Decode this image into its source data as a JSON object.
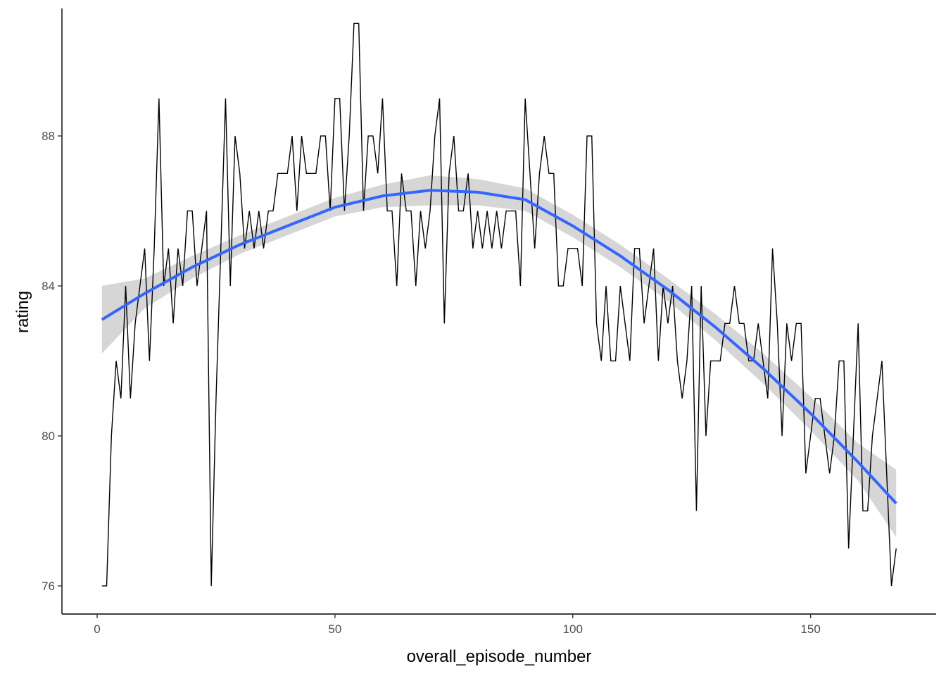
{
  "chart_data": {
    "type": "line",
    "xlabel": "overall_episode_number",
    "ylabel": "rating",
    "xlim": [
      -7.4,
      176.4
    ],
    "ylim": [
      75.25,
      91.4
    ],
    "xticks": [
      0,
      50,
      100,
      150
    ],
    "yticks": [
      76,
      80,
      84,
      88
    ],
    "grid": false,
    "legend": "none",
    "series": [
      {
        "x": [
          1,
          2,
          3,
          4,
          5,
          6,
          7,
          8,
          9,
          10,
          11,
          12,
          13,
          14,
          15,
          16,
          17,
          18,
          19,
          20,
          21,
          22,
          23,
          24,
          25,
          26,
          27,
          28,
          29,
          30,
          31,
          32,
          33,
          34,
          35,
          36,
          37,
          38,
          39,
          40,
          41,
          42,
          43,
          44,
          45,
          46,
          47,
          48,
          49,
          50,
          51,
          52,
          53,
          54,
          55,
          56,
          57,
          58,
          59,
          60,
          61,
          62,
          63,
          64,
          65,
          66,
          67,
          68,
          69,
          70,
          71,
          72,
          73,
          74,
          75,
          76,
          77,
          78,
          79,
          80,
          81,
          82,
          83,
          84,
          85,
          86,
          87,
          88,
          89,
          90,
          91,
          92,
          93,
          94,
          95,
          96,
          97,
          98,
          99,
          100,
          101,
          102,
          103,
          104,
          105,
          106,
          107,
          108,
          109,
          110,
          111,
          112,
          113,
          114,
          115,
          116,
          117,
          118,
          119,
          120,
          121,
          122,
          123,
          124,
          125,
          126,
          127,
          128,
          129,
          130,
          131,
          132,
          133,
          134,
          135,
          136,
          137,
          138,
          139,
          140,
          141,
          142,
          143,
          144,
          145,
          146,
          147,
          148,
          149,
          150,
          151,
          152,
          153,
          154,
          155,
          156,
          157,
          158,
          159,
          160,
          161,
          162,
          163,
          164,
          165,
          166,
          167,
          168
        ],
        "y": [
          76,
          76,
          80,
          82,
          81,
          84,
          81,
          83,
          84,
          85,
          82,
          85,
          89,
          84,
          85,
          83,
          85,
          84,
          86,
          86,
          84,
          85,
          86,
          76,
          81,
          85,
          89,
          84,
          88,
          87,
          85,
          86,
          85,
          86,
          85,
          86,
          86,
          87,
          87,
          87,
          88,
          86,
          88,
          87,
          87,
          87,
          88,
          88,
          86,
          89,
          89,
          86,
          88,
          91,
          91,
          86,
          88,
          88,
          87,
          89,
          86,
          86,
          84,
          87,
          86,
          86,
          84,
          86,
          85,
          86,
          88,
          89,
          83,
          87,
          88,
          86,
          86,
          87,
          85,
          86,
          85,
          86,
          85,
          86,
          85,
          86,
          86,
          86,
          84,
          89,
          87,
          85,
          87,
          88,
          87,
          87,
          84,
          84,
          85,
          85,
          85,
          84,
          88,
          88,
          83,
          82,
          84,
          82,
          82,
          84,
          83,
          82,
          85,
          85,
          83,
          84,
          85,
          82,
          84,
          83,
          84,
          82,
          81,
          82,
          84,
          78,
          84,
          80,
          82,
          82,
          82,
          83,
          83,
          84,
          83,
          83,
          82,
          82,
          83,
          82,
          81,
          85,
          83,
          80,
          83,
          82,
          83,
          83,
          79,
          80,
          81,
          81,
          80,
          79,
          80,
          82,
          82,
          77,
          80,
          83,
          78,
          78,
          80,
          81,
          82,
          79,
          76,
          77
        ]
      }
    ],
    "smooth": {
      "method": "loess",
      "x": [
        1,
        10,
        20,
        30,
        40,
        50,
        60,
        70,
        80,
        90,
        100,
        110,
        120,
        130,
        140,
        150,
        160,
        168
      ],
      "y": [
        83.1,
        83.8,
        84.5,
        85.1,
        85.6,
        86.1,
        86.4,
        86.55,
        86.5,
        86.3,
        85.6,
        84.8,
        83.9,
        82.9,
        81.8,
        80.6,
        79.3,
        78.2
      ],
      "se_upper": [
        84.0,
        84.2,
        84.8,
        85.35,
        85.85,
        86.35,
        86.7,
        86.95,
        86.85,
        86.6,
        85.9,
        85.1,
        84.2,
        83.25,
        82.2,
        81.05,
        79.8,
        79.1
      ],
      "se_lower": [
        82.2,
        83.4,
        84.2,
        84.85,
        85.35,
        85.85,
        86.1,
        86.15,
        86.15,
        86.0,
        85.3,
        84.5,
        83.6,
        82.55,
        81.4,
        80.15,
        78.8,
        77.3
      ]
    },
    "colors": {
      "smooth_line": "#3366ff",
      "ribbon": "#d4d4d4",
      "data_line": "#000000"
    }
  }
}
